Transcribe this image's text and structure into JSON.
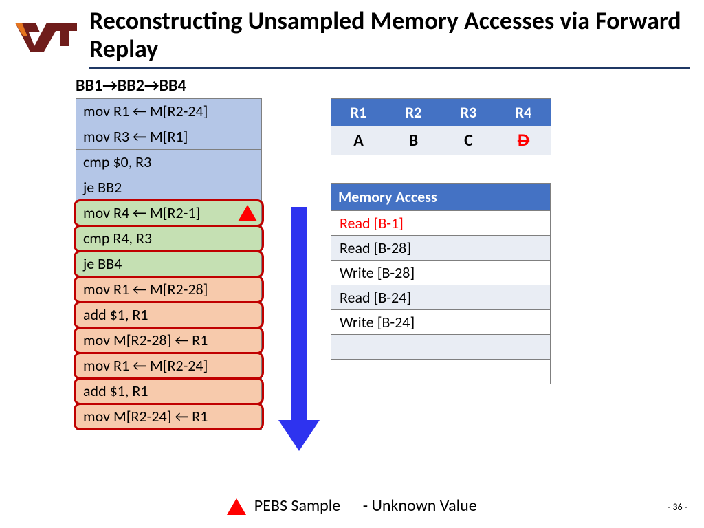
{
  "title": "Reconstructing Unsampled Memory Accesses via Forward Replay",
  "path": "BB1→BB2→BB4",
  "logo": {
    "color_maroon": "#6f1d1b",
    "color_orange": "#e5751f"
  },
  "instructions": [
    {
      "text": "mov R1 ← M[R2-24]",
      "bg": "bg-blue",
      "boxed": false,
      "marker": false
    },
    {
      "text": "mov R3 ← M[R1]",
      "bg": "bg-blue",
      "boxed": false,
      "marker": false
    },
    {
      "text": "cmp $0, R3",
      "bg": "bg-blue",
      "boxed": false,
      "marker": false
    },
    {
      "text": "je BB2",
      "bg": "bg-blue",
      "boxed": false,
      "marker": false
    },
    {
      "text": "mov R4 ← M[R2-1]",
      "bg": "bg-green",
      "boxed": true,
      "marker": true
    },
    {
      "text": "cmp R4, R3",
      "bg": "bg-green",
      "boxed": true,
      "marker": false
    },
    {
      "text": "je BB4",
      "bg": "bg-green",
      "boxed": true,
      "marker": false
    },
    {
      "text": "mov R1 ← M[R2-28]",
      "bg": "bg-orange",
      "boxed": true,
      "marker": false
    },
    {
      "text": "add $1, R1",
      "bg": "bg-orange",
      "boxed": true,
      "marker": false
    },
    {
      "text": "mov M[R2-28] ← R1",
      "bg": "bg-orange",
      "boxed": true,
      "marker": false
    },
    {
      "text": "mov R1 ← M[R2-24]",
      "bg": "bg-orange",
      "boxed": true,
      "marker": false
    },
    {
      "text": "add $1, R1",
      "bg": "bg-orange",
      "boxed": true,
      "marker": false
    },
    {
      "text": "mov M[R2-24] ← R1",
      "bg": "bg-orange",
      "boxed": true,
      "marker": false
    }
  ],
  "registers": {
    "headers": [
      "R1",
      "R2",
      "R3",
      "R4"
    ],
    "values": [
      "A",
      "B",
      "C",
      "D"
    ],
    "r4_strike": true
  },
  "memory": {
    "header": "Memory Access",
    "rows": [
      {
        "text": "Read [B-1]",
        "red": true
      },
      {
        "text": "Read [B-28]",
        "red": false
      },
      {
        "text": "Write [B-28]",
        "red": false
      },
      {
        "text": "Read [B-24]",
        "red": false
      },
      {
        "text": "Write [B-24]",
        "red": false
      },
      {
        "text": "",
        "red": false
      },
      {
        "text": "",
        "red": false
      }
    ]
  },
  "arrow": {
    "color": "#2e33ef",
    "length": 340
  },
  "legend": {
    "pebs": "PEBS Sample",
    "unknown": "- Unknown Value"
  },
  "page": "- 36 -"
}
